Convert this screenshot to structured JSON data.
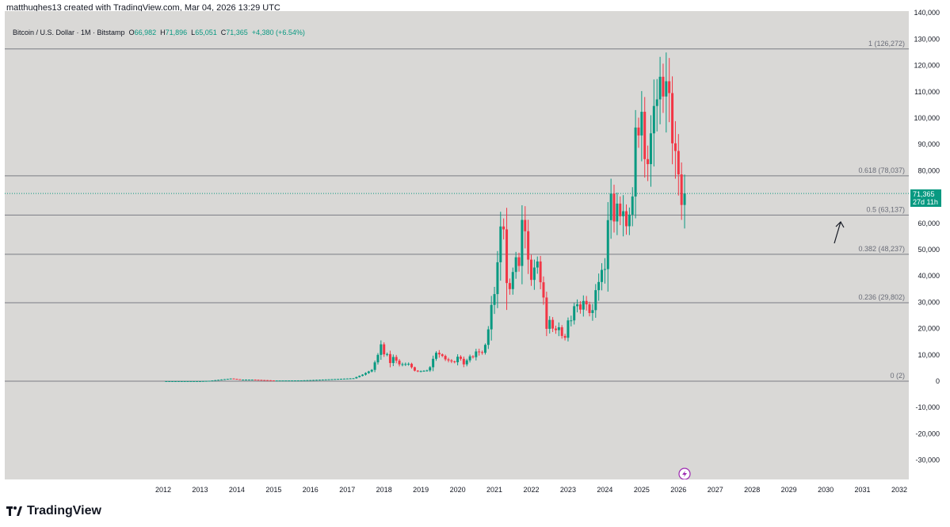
{
  "header": {
    "credit": "matthughes13 created with TradingView.com, Mar 04, 2026 13:29 UTC"
  },
  "legend": {
    "symbol": "Bitcoin / U.S. Dollar · 1M · Bitstamp",
    "open_label": "O",
    "open": "66,982",
    "high_label": "H",
    "high": "71,896",
    "low_label": "L",
    "low": "65,051",
    "close_label": "C",
    "close": "71,365",
    "change": "+4,380 (+6.54%)"
  },
  "price_tag": {
    "price": "71,365",
    "countdown": "27d 11h"
  },
  "brand": {
    "name": "TradingView"
  },
  "colors": {
    "up": "#089981",
    "down": "#f23645",
    "background": "#d9d8d6",
    "fib_line": "#7b7d84",
    "tag": "#089981"
  },
  "chart_data": {
    "type": "candlestick",
    "title": "Bitcoin / U.S. Dollar · 1M · Bitstamp",
    "x_range": [
      "2011-01",
      "2032-06"
    ],
    "ylim": [
      -40000,
      140000
    ],
    "y_ticks": [
      "140,000",
      "130,000",
      "120,000",
      "110,000",
      "100,000",
      "90,000",
      "80,000",
      "70,000",
      "60,000",
      "50,000",
      "40,000",
      "30,000",
      "20,000",
      "10,000",
      "0",
      "-10,000",
      "-20,000",
      "-30,000"
    ],
    "y_tick_values": [
      140000,
      130000,
      120000,
      110000,
      100000,
      90000,
      80000,
      70000,
      60000,
      50000,
      40000,
      30000,
      20000,
      10000,
      0,
      -10000,
      -20000,
      -30000
    ],
    "x_ticks": [
      "2012",
      "2013",
      "2014",
      "2015",
      "2016",
      "2017",
      "2018",
      "2019",
      "2020",
      "2021",
      "2022",
      "2023",
      "2024",
      "2025",
      "2026",
      "2027",
      "2028",
      "2029",
      "2030",
      "2031",
      "2032"
    ],
    "fib_levels": [
      {
        "label": "1 (126,272)",
        "value": 126272
      },
      {
        "label": "0.618 (78,037)",
        "value": 78037
      },
      {
        "label": "0.5 (63,137)",
        "value": 63137
      },
      {
        "label": "0.382 (48,237)",
        "value": 48237
      },
      {
        "label": "0.236 (29,802)",
        "value": 29802
      },
      {
        "label": "0 (2)",
        "value": 2
      }
    ],
    "last_price": 71365,
    "anchors": [
      [
        "2012-01",
        5
      ],
      [
        "2013-01",
        13
      ],
      [
        "2013-04",
        150
      ],
      [
        "2013-11",
        1000
      ],
      [
        "2014-02",
        600
      ],
      [
        "2014-06",
        600
      ],
      [
        "2015-01",
        250
      ],
      [
        "2015-10",
        300
      ],
      [
        "2016-01",
        420
      ],
      [
        "2016-06",
        650
      ],
      [
        "2016-12",
        950
      ],
      [
        "2017-03",
        1100
      ],
      [
        "2017-06",
        2500
      ],
      [
        "2017-09",
        4300
      ],
      [
        "2017-11",
        10000
      ],
      [
        "2017-12",
        14000
      ],
      [
        "2018-01",
        10200
      ],
      [
        "2018-02",
        10300
      ],
      [
        "2018-03",
        6900
      ],
      [
        "2018-04",
        9200
      ],
      [
        "2018-06",
        6400
      ],
      [
        "2018-09",
        6600
      ],
      [
        "2018-11",
        4000
      ],
      [
        "2018-12",
        3700
      ],
      [
        "2019-03",
        4100
      ],
      [
        "2019-04",
        5300
      ],
      [
        "2019-05",
        8500
      ],
      [
        "2019-06",
        10800
      ],
      [
        "2019-08",
        9600
      ],
      [
        "2019-09",
        8300
      ],
      [
        "2019-11",
        7500
      ],
      [
        "2019-12",
        7200
      ],
      [
        "2020-01",
        9300
      ],
      [
        "2020-02",
        8500
      ],
      [
        "2020-03",
        6400
      ],
      [
        "2020-05",
        9450
      ],
      [
        "2020-06",
        9140
      ],
      [
        "2020-07",
        11300
      ],
      [
        "2020-09",
        10800
      ],
      [
        "2020-10",
        13800
      ],
      [
        "2020-11",
        19700
      ],
      [
        "2020-12",
        29000
      ],
      [
        "2021-01",
        33100
      ],
      [
        "2021-02",
        45200
      ],
      [
        "2021-03",
        58800
      ],
      [
        "2021-04",
        57700
      ],
      [
        "2021-05",
        37300
      ],
      [
        "2021-06",
        35000
      ],
      [
        "2021-07",
        41500
      ],
      [
        "2021-08",
        47100
      ],
      [
        "2021-09",
        43800
      ],
      [
        "2021-10",
        61300
      ],
      [
        "2021-11",
        57000
      ],
      [
        "2021-12",
        46200
      ],
      [
        "2022-01",
        38500
      ],
      [
        "2022-02",
        43200
      ],
      [
        "2022-03",
        45500
      ],
      [
        "2022-04",
        37600
      ],
      [
        "2022-05",
        31800
      ],
      [
        "2022-06",
        19900
      ],
      [
        "2022-07",
        23300
      ],
      [
        "2022-08",
        20000
      ],
      [
        "2022-09",
        19400
      ],
      [
        "2022-10",
        20500
      ],
      [
        "2022-11",
        17200
      ],
      [
        "2022-12",
        16500
      ],
      [
        "2023-01",
        23100
      ],
      [
        "2023-02",
        23100
      ],
      [
        "2023-03",
        28500
      ],
      [
        "2023-04",
        29200
      ],
      [
        "2023-05",
        27200
      ],
      [
        "2023-06",
        30500
      ],
      [
        "2023-07",
        29200
      ],
      [
        "2023-08",
        25900
      ],
      [
        "2023-09",
        27000
      ],
      [
        "2023-10",
        34600
      ],
      [
        "2023-11",
        37700
      ],
      [
        "2023-12",
        42300
      ],
      [
        "2024-01",
        42600
      ],
      [
        "2024-02",
        61200
      ],
      [
        "2024-03",
        71300
      ],
      [
        "2024-04",
        60700
      ],
      [
        "2024-05",
        67500
      ],
      [
        "2024-06",
        62700
      ],
      [
        "2024-07",
        64600
      ],
      [
        "2024-08",
        58900
      ],
      [
        "2024-09",
        63300
      ],
      [
        "2024-10",
        70200
      ],
      [
        "2024-11",
        96400
      ],
      [
        "2024-12",
        93400
      ],
      [
        "2025-01",
        102400
      ],
      [
        "2025-02",
        84400
      ],
      [
        "2025-03",
        82500
      ],
      [
        "2025-04",
        94200
      ],
      [
        "2025-05",
        104600
      ],
      [
        "2025-06",
        107100
      ],
      [
        "2025-07",
        115700
      ],
      [
        "2025-08",
        108200
      ],
      [
        "2025-09",
        114000
      ],
      [
        "2025-10",
        109500
      ],
      [
        "2025-11",
        90400
      ],
      [
        "2025-12",
        87500
      ],
      [
        "2026-01",
        78600
      ],
      [
        "2026-02",
        66982
      ],
      [
        "2026-03",
        71365
      ]
    ]
  }
}
